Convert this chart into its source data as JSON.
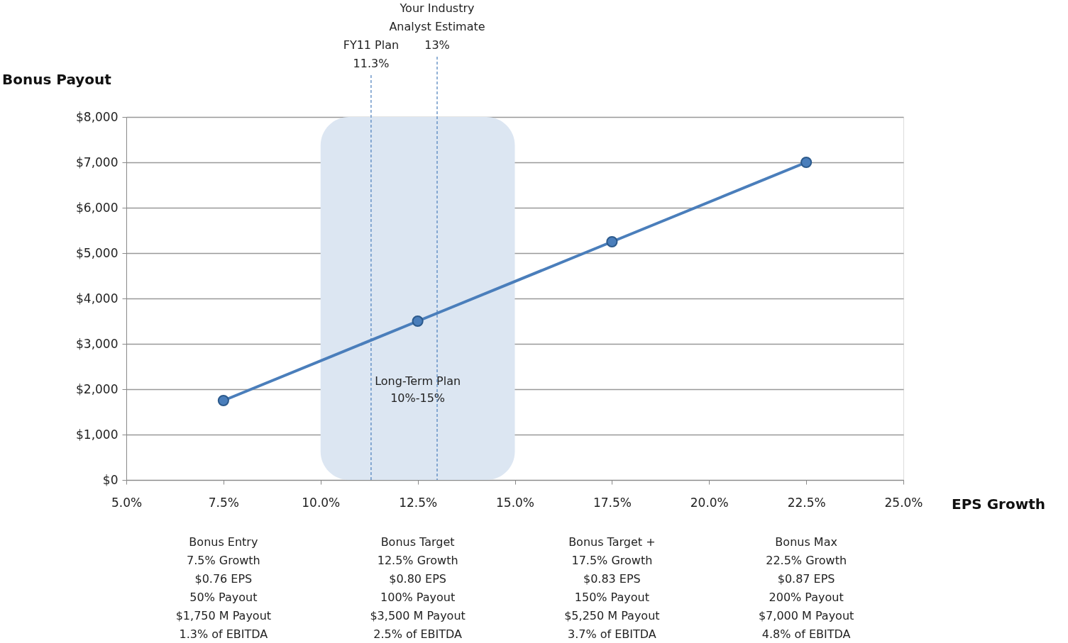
{
  "chart_data": {
    "type": "line",
    "xlabel": "EPS Growth",
    "ylabel": "Bonus Payout",
    "x": [
      7.5,
      12.5,
      17.5,
      22.5
    ],
    "series": [
      {
        "color": "#4a7ebb",
        "values": [
          1750,
          3500,
          5250,
          7000
        ]
      }
    ],
    "marker": "circle",
    "line_style": "solid",
    "xlim": [
      5,
      25
    ],
    "xticks": [
      {
        "value": 5,
        "label": "5.0%"
      },
      {
        "value": 7.5,
        "label": "7.5%"
      },
      {
        "value": 10,
        "label": "10.0%"
      },
      {
        "value": 12.5,
        "label": "12.5%"
      },
      {
        "value": 15,
        "label": "15.0%"
      },
      {
        "value": 17.5,
        "label": "17.5%"
      },
      {
        "value": 20,
        "label": "20.0%"
      },
      {
        "value": 22.5,
        "label": "22.5%"
      },
      {
        "value": 25,
        "label": "25.0%"
      }
    ],
    "ylim": [
      0,
      8000
    ],
    "yticks": [
      {
        "value": 0,
        "label": "$0"
      },
      {
        "value": 1000,
        "label": "$1,000"
      },
      {
        "value": 2000,
        "label": "$2,000"
      },
      {
        "value": 3000,
        "label": "$3,000"
      },
      {
        "value": 4000,
        "label": "$4,000"
      },
      {
        "value": 5000,
        "label": "$5,000"
      },
      {
        "value": 6000,
        "label": "$6,000"
      },
      {
        "value": 7000,
        "label": "$7,000"
      },
      {
        "value": 8000,
        "label": "$8,000"
      }
    ],
    "grid": "y",
    "ref_lines": [
      {
        "axis": "x",
        "value": 11.3,
        "label": "FY11 Plan\n11.3%",
        "color": "#4a7ebb",
        "line_style": "dashed"
      },
      {
        "axis": "x",
        "value": 13,
        "label": "Your Industry\nAnalyst Estimate\n13%",
        "color": "#4a7ebb",
        "line_style": "dashed"
      }
    ],
    "bands": [
      {
        "axis": "x",
        "from": 10,
        "to": 15,
        "label": "Long-Term Plan\n10%-15%",
        "color": "#dce6f2"
      }
    ],
    "annotations": [
      "Bonus Entry\n7.5% Growth\n$0.76 EPS\n50% Payout\n$1,750 M Payout\n1.3% of EBITDA",
      "Bonus Target\n12.5% Growth\n$0.80 EPS\n100% Payout\n$3,500 M Payout\n2.5% of EBITDA",
      "Bonus Target +\n17.5% Growth\n$0.83 EPS\n150% Payout\n$5,250 M Payout\n3.7% of EBITDA",
      "Bonus Max\n22.5% Growth\n$0.87 EPS\n200% Payout\n$7,000 M Payout\n4.8% of EBITDA"
    ]
  }
}
